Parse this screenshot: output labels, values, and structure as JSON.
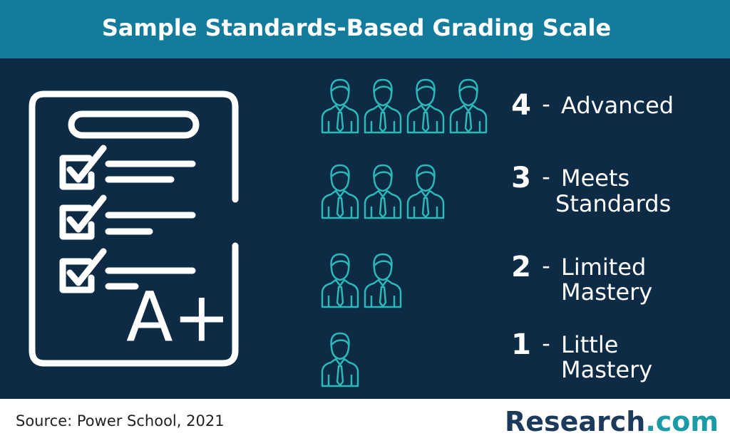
{
  "header": {
    "title": "Sample Standards-Based Grading Scale"
  },
  "illustration": {
    "grade": "A+"
  },
  "separator": "-",
  "levels": [
    {
      "score": 4,
      "label_lines": [
        "Advanced"
      ]
    },
    {
      "score": 3,
      "label_lines": [
        "Meets",
        "Standards"
      ]
    },
    {
      "score": 2,
      "label_lines": [
        "Limited",
        "Mastery"
      ]
    },
    {
      "score": 1,
      "label_lines": [
        "Little",
        "Mastery"
      ]
    }
  ],
  "footer": {
    "source": "Source: Power School, 2021",
    "brand": "Research",
    "brand_suffix": ".com"
  }
}
